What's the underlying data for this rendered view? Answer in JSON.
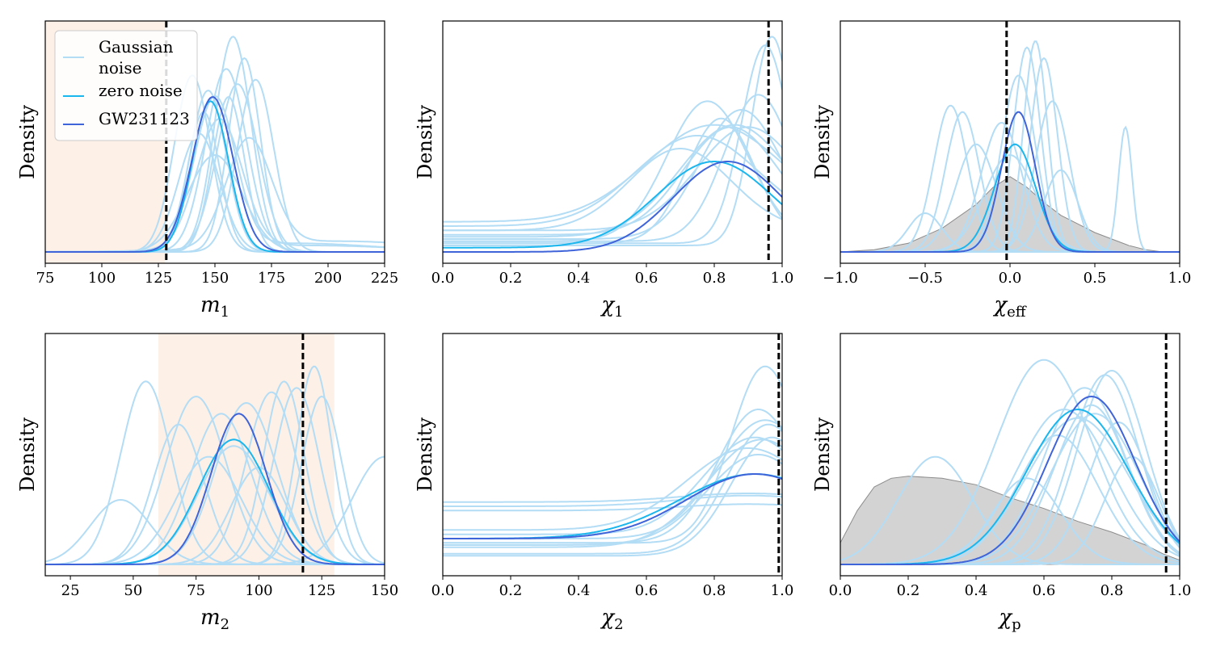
{
  "colors": {
    "gaussian": "#b3dcf5",
    "zero_noise": "#1ab6ee",
    "gw": "#3f63d8",
    "prior_fill": "#d3d3d3",
    "prior_edge": "#8c8c8c",
    "shade": "#fdf0e6",
    "true_line": "#000000"
  },
  "legend": {
    "gaussian_line1": "Gaussian",
    "gaussian_line2": "noise",
    "zero": "zero noise",
    "gw": "GW231123"
  },
  "chart_data": [
    {
      "id": "m1",
      "type": "line",
      "xlabel_main": "m",
      "xlabel_sub": "1",
      "ylabel": "Density",
      "xlim": [
        75,
        225
      ],
      "ylim": [
        0,
        1.05
      ],
      "xticks": [
        75,
        100,
        125,
        150,
        175,
        200,
        225
      ],
      "shaded_region": [
        75,
        128
      ],
      "true_value": 128.5,
      "legend": true,
      "gaussian": [
        {
          "mu": 150,
          "sigma": 9,
          "amp": 0.7,
          "tail": 0.04
        },
        {
          "mu": 158,
          "sigma": 8,
          "amp": 1.0
        },
        {
          "mu": 163,
          "sigma": 7,
          "amp": 0.9
        },
        {
          "mu": 140,
          "sigma": 8,
          "amp": 0.82
        },
        {
          "mu": 155,
          "sigma": 9,
          "amp": 0.85
        },
        {
          "mu": 147,
          "sigma": 8,
          "amp": 0.75
        },
        {
          "mu": 168,
          "sigma": 8,
          "amp": 0.8
        },
        {
          "mu": 145,
          "sigma": 7,
          "amp": 0.65
        },
        {
          "mu": 152,
          "sigma": 10,
          "amp": 0.6,
          "tail": 0.03
        },
        {
          "mu": 160,
          "sigma": 9,
          "amp": 0.78
        },
        {
          "mu": 143,
          "sigma": 9,
          "amp": 0.55
        },
        {
          "mu": 156,
          "sigma": 7,
          "amp": 0.72
        },
        {
          "mu": 165,
          "sigma": 10,
          "amp": 0.5,
          "tail": 0.05
        },
        {
          "mu": 150,
          "sigma": 12,
          "amp": 0.45
        }
      ],
      "zero_noise": {
        "mu": 148,
        "sigma": 8,
        "amp": 0.7
      },
      "gw231123": {
        "mu": 149,
        "sigma": 9,
        "amp": 0.72
      },
      "prior": null
    },
    {
      "id": "chi1",
      "type": "line",
      "xlabel_main": "χ",
      "xlabel_sub": "1",
      "ylabel": "Density",
      "xlim": [
        0,
        1
      ],
      "ylim": [
        0,
        1.05
      ],
      "xticks": [
        0.0,
        0.2,
        0.4,
        0.6,
        0.8,
        1.0
      ],
      "shaded_region": null,
      "true_value": 0.96,
      "legend": false,
      "gaussian": [
        {
          "mu": 0.95,
          "sigma": 0.07,
          "amp": 0.92,
          "base": 0.04
        },
        {
          "mu": 0.97,
          "sigma": 0.06,
          "amp": 0.97,
          "base": 0.03
        },
        {
          "mu": 0.78,
          "sigma": 0.12,
          "amp": 0.65,
          "base": 0.05
        },
        {
          "mu": 0.85,
          "sigma": 0.14,
          "amp": 0.5,
          "base": 0.08
        },
        {
          "mu": 0.9,
          "sigma": 0.15,
          "amp": 0.48,
          "base": 0.1
        },
        {
          "mu": 0.75,
          "sigma": 0.18,
          "amp": 0.42,
          "base": 0.12
        },
        {
          "mu": 0.82,
          "sigma": 0.1,
          "amp": 0.58,
          "base": 0.04
        },
        {
          "mu": 0.88,
          "sigma": 0.12,
          "amp": 0.6,
          "base": 0.06
        },
        {
          "mu": 0.7,
          "sigma": 0.15,
          "amp": 0.38,
          "base": 0.1
        },
        {
          "mu": 0.93,
          "sigma": 0.1,
          "amp": 0.68,
          "base": 0.05
        },
        {
          "mu": 0.8,
          "sigma": 0.2,
          "amp": 0.45,
          "base": 0.14
        },
        {
          "mu": 0.86,
          "sigma": 0.16,
          "amp": 0.52,
          "base": 0.07
        }
      ],
      "zero_noise": {
        "mu": 0.8,
        "sigma": 0.17,
        "amp": 0.4,
        "base": 0.02
      },
      "gw231123": {
        "mu": 0.84,
        "sigma": 0.16,
        "amp": 0.42,
        "base": 0.0
      },
      "prior": null
    },
    {
      "id": "chieff",
      "type": "line",
      "xlabel_main": "χ",
      "xlabel_sub": "eff",
      "ylabel": "Density",
      "xlim": [
        -1,
        1
      ],
      "ylim": [
        0,
        1.05
      ],
      "xticks": [
        -1.0,
        -0.5,
        0.0,
        0.5,
        1.0
      ],
      "shaded_region": null,
      "true_value": -0.02,
      "legend": false,
      "gaussian": [
        {
          "mu": 0.1,
          "sigma": 0.08,
          "amp": 0.95
        },
        {
          "mu": 0.15,
          "sigma": 0.07,
          "amp": 0.98
        },
        {
          "mu": -0.35,
          "sigma": 0.1,
          "amp": 0.68
        },
        {
          "mu": -0.28,
          "sigma": 0.1,
          "amp": 0.65
        },
        {
          "mu": 0.2,
          "sigma": 0.08,
          "amp": 0.9
        },
        {
          "mu": -0.2,
          "sigma": 0.12,
          "amp": 0.5
        },
        {
          "mu": 0.05,
          "sigma": 0.1,
          "amp": 0.82
        },
        {
          "mu": 0.68,
          "sigma": 0.04,
          "amp": 0.58
        },
        {
          "mu": -0.5,
          "sigma": 0.1,
          "amp": 0.18
        },
        {
          "mu": 0.25,
          "sigma": 0.1,
          "amp": 0.7
        },
        {
          "mu": -0.05,
          "sigma": 0.12,
          "amp": 0.6
        },
        {
          "mu": 0.3,
          "sigma": 0.1,
          "amp": 0.38
        },
        {
          "mu": 0.0,
          "sigma": 0.15,
          "amp": 0.45
        }
      ],
      "zero_noise": {
        "mu": 0.03,
        "sigma": 0.12,
        "amp": 0.5
      },
      "gw231123": {
        "mu": 0.05,
        "sigma": 0.1,
        "amp": 0.65
      },
      "prior": {
        "x": [
          -1.0,
          -0.8,
          -0.6,
          -0.4,
          -0.2,
          -0.1,
          0.0,
          0.1,
          0.2,
          0.3,
          0.4,
          0.5,
          0.6,
          0.7,
          0.8,
          0.9,
          1.0
        ],
        "y": [
          0.0,
          0.01,
          0.04,
          0.11,
          0.22,
          0.3,
          0.35,
          0.3,
          0.23,
          0.17,
          0.13,
          0.09,
          0.06,
          0.03,
          0.01,
          0.0,
          0.0
        ]
      }
    },
    {
      "id": "m2",
      "type": "line",
      "xlabel_main": "m",
      "xlabel_sub": "2",
      "ylabel": "Density",
      "xlim": [
        15,
        150
      ],
      "ylim": [
        0,
        1.05
      ],
      "xticks": [
        25,
        50,
        75,
        100,
        125,
        150
      ],
      "shaded_region": [
        60,
        130
      ],
      "true_value": 117.5,
      "legend": false,
      "gaussian": [
        {
          "mu": 55,
          "sigma": 10,
          "amp": 0.85
        },
        {
          "mu": 45,
          "sigma": 12,
          "amp": 0.3
        },
        {
          "mu": 68,
          "sigma": 10,
          "amp": 0.65
        },
        {
          "mu": 75,
          "sigma": 12,
          "amp": 0.78
        },
        {
          "mu": 85,
          "sigma": 12,
          "amp": 0.7
        },
        {
          "mu": 95,
          "sigma": 12,
          "amp": 0.75
        },
        {
          "mu": 105,
          "sigma": 10,
          "amp": 0.8
        },
        {
          "mu": 110,
          "sigma": 8,
          "amp": 0.85
        },
        {
          "mu": 115,
          "sigma": 9,
          "amp": 0.82
        },
        {
          "mu": 122,
          "sigma": 7,
          "amp": 0.92
        },
        {
          "mu": 125,
          "sigma": 8,
          "amp": 0.78
        },
        {
          "mu": 150,
          "sigma": 13,
          "amp": 0.5
        },
        {
          "mu": 90,
          "sigma": 14,
          "amp": 0.55
        },
        {
          "mu": 100,
          "sigma": 11,
          "amp": 0.45
        },
        {
          "mu": 80,
          "sigma": 13,
          "amp": 0.5
        }
      ],
      "zero_noise": {
        "mu": 90,
        "sigma": 14,
        "amp": 0.58
      },
      "gw231123": {
        "mu": 92,
        "sigma": 11,
        "amp": 0.7
      },
      "prior": null
    },
    {
      "id": "chi2",
      "type": "line",
      "xlabel_main": "χ",
      "xlabel_sub": "2",
      "ylabel": "Density",
      "xlim": [
        0,
        1
      ],
      "ylim": [
        0,
        1.05
      ],
      "xticks": [
        0.0,
        0.2,
        0.4,
        0.6,
        0.8,
        1.0
      ],
      "shaded_region": null,
      "true_value": 0.99,
      "legend": false,
      "gaussian": [
        {
          "mu": 0.95,
          "sigma": 0.1,
          "amp": 0.82,
          "base": 0.1
        },
        {
          "mu": 0.93,
          "sigma": 0.12,
          "amp": 0.62,
          "base": 0.1
        },
        {
          "mu": 0.95,
          "sigma": 0.14,
          "amp": 0.55,
          "base": 0.12
        },
        {
          "mu": 0.92,
          "sigma": 0.15,
          "amp": 0.45,
          "base": 0.14
        },
        {
          "mu": 0.96,
          "sigma": 0.12,
          "amp": 0.6,
          "base": 0.05
        },
        {
          "mu": 0.9,
          "sigma": 0.18,
          "amp": 0.38,
          "base": 0.16
        },
        {
          "mu": 0.94,
          "sigma": 0.16,
          "amp": 0.5,
          "base": 0.08
        },
        {
          "mu": 0.9,
          "sigma": 0.2,
          "amp": 0.05,
          "base": 0.27
        },
        {
          "mu": 0.9,
          "sigma": 0.2,
          "amp": 0.03,
          "base": 0.25
        },
        {
          "mu": 0.9,
          "sigma": 0.2,
          "amp": 0.04,
          "base": 0.29
        },
        {
          "mu": 0.97,
          "sigma": 0.12,
          "amp": 0.55,
          "base": 0.04
        },
        {
          "mu": 0.93,
          "sigma": 0.15,
          "amp": 0.42,
          "base": 0.09
        }
      ],
      "zero_noise": {
        "mu": 0.92,
        "sigma": 0.22,
        "amp": 0.3,
        "base": 0.12
      },
      "gw231123": {
        "mu": 0.92,
        "sigma": 0.2,
        "amp": 0.3,
        "base": 0.12
      },
      "prior": null
    },
    {
      "id": "chip",
      "type": "line",
      "xlabel_main": "χ",
      "xlabel_sub": "p",
      "ylabel": "Density",
      "xlim": [
        0,
        1
      ],
      "ylim": [
        0,
        1.05
      ],
      "xticks": [
        0.0,
        0.2,
        0.4,
        0.6,
        0.8,
        1.0
      ],
      "shaded_region": null,
      "true_value": 0.96,
      "legend": false,
      "gaussian": [
        {
          "mu": 0.6,
          "sigma": 0.14,
          "amp": 0.95
        },
        {
          "mu": 0.28,
          "sigma": 0.11,
          "amp": 0.5
        },
        {
          "mu": 0.8,
          "sigma": 0.1,
          "amp": 0.9
        },
        {
          "mu": 0.72,
          "sigma": 0.12,
          "amp": 0.82
        },
        {
          "mu": 0.78,
          "sigma": 0.1,
          "amp": 0.88
        },
        {
          "mu": 0.66,
          "sigma": 0.14,
          "amp": 0.72
        },
        {
          "mu": 0.75,
          "sigma": 0.13,
          "amp": 0.7
        },
        {
          "mu": 0.7,
          "sigma": 0.15,
          "amp": 0.68
        },
        {
          "mu": 0.82,
          "sigma": 0.09,
          "amp": 0.66
        },
        {
          "mu": 0.64,
          "sigma": 0.12,
          "amp": 0.6
        },
        {
          "mu": 0.86,
          "sigma": 0.08,
          "amp": 0.5
        },
        {
          "mu": 0.55,
          "sigma": 0.1,
          "amp": 0.4
        },
        {
          "mu": 0.74,
          "sigma": 0.11,
          "amp": 0.74
        }
      ],
      "zero_noise": {
        "mu": 0.7,
        "sigma": 0.15,
        "amp": 0.72
      },
      "gw231123": {
        "mu": 0.74,
        "sigma": 0.13,
        "amp": 0.78
      },
      "prior": {
        "x": [
          0.0,
          0.05,
          0.1,
          0.15,
          0.2,
          0.3,
          0.4,
          0.5,
          0.6,
          0.7,
          0.8,
          0.9,
          0.95,
          1.0
        ],
        "y": [
          0.1,
          0.25,
          0.36,
          0.4,
          0.41,
          0.4,
          0.37,
          0.31,
          0.26,
          0.2,
          0.15,
          0.09,
          0.05,
          0.02
        ]
      }
    }
  ]
}
